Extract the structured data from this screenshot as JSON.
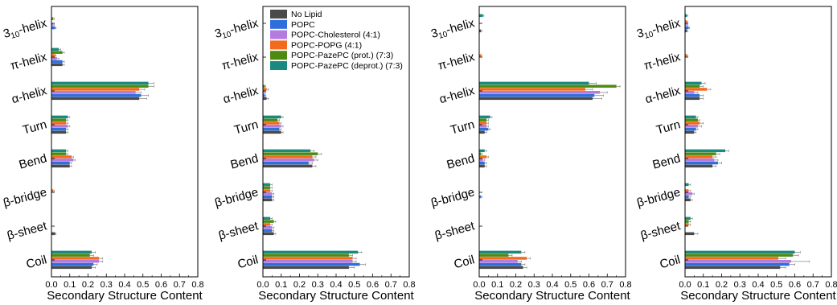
{
  "colors": {
    "No Lipid": "#4a4a4a",
    "POPC": "#2f6fdc",
    "POPC-Cholesterol (4:1)": "#b57ce0",
    "POPC-POPG (4:1)": "#f26b1d",
    "POPC-PazePC (prot.) (7:3)": "#4e8a12",
    "POPC-PazePC (deprot.) (7:3)": "#1a8a80"
  },
  "chart_data": [
    {
      "type": "bar",
      "orientation": "horizontal",
      "xlabel": "Secondary Structure Content",
      "xlim": [
        0,
        0.8
      ],
      "xticks": [
        "0.0",
        "0.1",
        "0.2",
        "0.3",
        "0.4",
        "0.5",
        "0.6",
        "0.7",
        "0.8"
      ],
      "categories": [
        "3₁₀-helix",
        "π-helix",
        "α-helix",
        "Turn",
        "Bend",
        "β-bridge",
        "β-sheet",
        "Coil"
      ],
      "series": [
        {
          "name": "No Lipid",
          "values": [
            0.0,
            0.06,
            0.48,
            0.08,
            0.1,
            0.0,
            0.02,
            0.22
          ],
          "errors": [
            0.0,
            0.01,
            0.04,
            0.01,
            0.01,
            0.0,
            0.005,
            0.02
          ]
        },
        {
          "name": "POPC",
          "values": [
            0.02,
            0.06,
            0.49,
            0.08,
            0.1,
            0.0,
            0.0,
            0.23
          ],
          "errors": [
            0.005,
            0.01,
            0.04,
            0.01,
            0.01,
            0.0,
            0.0,
            0.02
          ]
        },
        {
          "name": "POPC-Cholesterol (4:1)",
          "values": [
            0.01,
            0.03,
            0.46,
            0.09,
            0.12,
            0.0,
            0.0,
            0.26
          ],
          "errors": [
            0.005,
            0.01,
            0.03,
            0.01,
            0.01,
            0.0,
            0.0,
            0.02
          ]
        },
        {
          "name": "POPC-POPG (4:1)",
          "values": [
            0.0,
            0.02,
            0.48,
            0.08,
            0.11,
            0.01,
            0.0,
            0.26
          ],
          "errors": [
            0.0,
            0.005,
            0.03,
            0.01,
            0.01,
            0.005,
            0.0,
            0.02
          ]
        },
        {
          "name": "POPC-PazePC (prot.) (7:3)",
          "values": [
            0.01,
            0.06,
            0.53,
            0.08,
            0.08,
            0.0,
            0.0,
            0.21
          ],
          "errors": [
            0.005,
            0.01,
            0.03,
            0.01,
            0.01,
            0.0,
            0.0,
            0.02
          ]
        },
        {
          "name": "POPC-PazePC (deprot.) (7:3)",
          "values": [
            0.0,
            0.04,
            0.53,
            0.09,
            0.08,
            0.0,
            0.0,
            0.22
          ],
          "errors": [
            0.0,
            0.01,
            0.03,
            0.01,
            0.01,
            0.0,
            0.0,
            0.02
          ]
        }
      ]
    },
    {
      "type": "bar",
      "orientation": "horizontal",
      "xlabel": "Secondary Structure Content",
      "xlim": [
        0,
        0.8
      ],
      "xticks": [
        "0.0",
        "0.1",
        "0.2",
        "0.3",
        "0.4",
        "0.5",
        "0.6",
        "0.7",
        "0.8"
      ],
      "categories": [
        "3₁₀-helix",
        "π-helix",
        "α-helix",
        "Turn",
        "Bend",
        "β-bridge",
        "β-sheet",
        "Coil"
      ],
      "legend": {
        "placement": "top-right"
      },
      "series": [
        {
          "name": "No Lipid",
          "values": [
            0.0,
            0.0,
            0.02,
            0.1,
            0.27,
            0.05,
            0.06,
            0.47
          ],
          "errors": [
            0.0,
            0.0,
            0.01,
            0.01,
            0.02,
            0.01,
            0.01,
            0.03
          ]
        },
        {
          "name": "POPC",
          "values": [
            0.0,
            0.0,
            0.01,
            0.09,
            0.25,
            0.05,
            0.05,
            0.53
          ],
          "errors": [
            0.0,
            0.0,
            0.005,
            0.01,
            0.02,
            0.01,
            0.01,
            0.03
          ]
        },
        {
          "name": "POPC-Cholesterol (4:1)",
          "values": [
            0.0,
            0.0,
            0.01,
            0.1,
            0.28,
            0.05,
            0.05,
            0.49
          ],
          "errors": [
            0.0,
            0.0,
            0.005,
            0.01,
            0.02,
            0.01,
            0.01,
            0.02
          ]
        },
        {
          "name": "POPC-POPG (4:1)",
          "values": [
            0.0,
            0.0,
            0.02,
            0.09,
            0.27,
            0.04,
            0.04,
            0.49
          ],
          "errors": [
            0.0,
            0.0,
            0.01,
            0.01,
            0.02,
            0.01,
            0.01,
            0.02
          ]
        },
        {
          "name": "POPC-PazePC (prot.) (7:3)",
          "values": [
            0.0,
            0.0,
            0.01,
            0.08,
            0.3,
            0.04,
            0.06,
            0.47
          ],
          "errors": [
            0.0,
            0.0,
            0.005,
            0.01,
            0.02,
            0.01,
            0.01,
            0.02
          ]
        },
        {
          "name": "POPC-PazePC (deprot.) (7:3)",
          "values": [
            0.0,
            0.0,
            0.0,
            0.1,
            0.26,
            0.04,
            0.04,
            0.52
          ],
          "errors": [
            0.0,
            0.0,
            0.0,
            0.01,
            0.02,
            0.01,
            0.01,
            0.02
          ]
        }
      ]
    },
    {
      "type": "bar",
      "orientation": "horizontal",
      "xlabel": "Secondary Structure Content",
      "xlim": [
        0,
        0.8
      ],
      "xticks": [
        "0.0",
        "0.1",
        "0.2",
        "0.3",
        "0.4",
        "0.5",
        "0.6",
        "0.7",
        "0.8"
      ],
      "categories": [
        "3₁₀-helix",
        "π-helix",
        "α-helix",
        "Turn",
        "Bend",
        "β-bridge",
        "β-sheet",
        "Coil"
      ],
      "series": [
        {
          "name": "No Lipid",
          "values": [
            0.01,
            0.0,
            0.62,
            0.03,
            0.03,
            0.0,
            0.0,
            0.24
          ],
          "errors": [
            0.005,
            0.0,
            0.05,
            0.01,
            0.01,
            0.0,
            0.0,
            0.02
          ]
        },
        {
          "name": "POPC",
          "values": [
            0.0,
            0.0,
            0.63,
            0.05,
            0.03,
            0.01,
            0.0,
            0.23
          ],
          "errors": [
            0.0,
            0.0,
            0.05,
            0.01,
            0.01,
            0.005,
            0.0,
            0.02
          ]
        },
        {
          "name": "POPC-Cholesterol (4:1)",
          "values": [
            0.0,
            0.0,
            0.66,
            0.04,
            0.02,
            0.0,
            0.0,
            0.21
          ],
          "errors": [
            0.0,
            0.0,
            0.04,
            0.01,
            0.01,
            0.0,
            0.0,
            0.02
          ]
        },
        {
          "name": "POPC-POPG (4:1)",
          "values": [
            0.0,
            0.01,
            0.58,
            0.04,
            0.04,
            0.0,
            0.0,
            0.26
          ],
          "errors": [
            0.0,
            0.005,
            0.04,
            0.01,
            0.01,
            0.0,
            0.0,
            0.02
          ]
        },
        {
          "name": "POPC-PazePC (prot.) (7:3)",
          "values": [
            0.0,
            0.0,
            0.75,
            0.04,
            0.01,
            0.0,
            0.0,
            0.16
          ],
          "errors": [
            0.0,
            0.0,
            0.02,
            0.01,
            0.005,
            0.0,
            0.0,
            0.02
          ]
        },
        {
          "name": "POPC-PazePC (deprot.) (7:3)",
          "values": [
            0.02,
            0.0,
            0.6,
            0.06,
            0.03,
            0.0,
            0.0,
            0.23
          ],
          "errors": [
            0.005,
            0.0,
            0.04,
            0.01,
            0.01,
            0.0,
            0.0,
            0.02
          ]
        }
      ]
    },
    {
      "type": "bar",
      "orientation": "horizontal",
      "xlabel": "Secondary Structure Content",
      "xlim": [
        0,
        0.8
      ],
      "xticks": [
        "0.0",
        "0.1",
        "0.2",
        "0.3",
        "0.4",
        "0.5",
        "0.6",
        "0.7",
        "0.8"
      ],
      "categories": [
        "3₁₀-helix",
        "π-helix",
        "α-helix",
        "Turn",
        "Bend",
        "β-bridge",
        "β-sheet",
        "Coil"
      ],
      "series": [
        {
          "name": "No Lipid",
          "values": [
            0.01,
            0.0,
            0.08,
            0.05,
            0.15,
            0.03,
            0.05,
            0.52
          ],
          "errors": [
            0.005,
            0.0,
            0.02,
            0.01,
            0.02,
            0.01,
            0.02,
            0.03
          ]
        },
        {
          "name": "POPC",
          "values": [
            0.02,
            0.0,
            0.08,
            0.06,
            0.18,
            0.02,
            0.0,
            0.57
          ],
          "errors": [
            0.005,
            0.0,
            0.02,
            0.01,
            0.02,
            0.01,
            0.0,
            0.03
          ]
        },
        {
          "name": "POPC-Cholesterol (4:1)",
          "values": [
            0.01,
            0.0,
            0.05,
            0.07,
            0.16,
            0.04,
            0.0,
            0.58
          ],
          "errors": [
            0.005,
            0.0,
            0.02,
            0.02,
            0.02,
            0.01,
            0.0,
            0.1
          ]
        },
        {
          "name": "POPC-POPG (4:1)",
          "values": [
            0.01,
            0.01,
            0.12,
            0.08,
            0.15,
            0.02,
            0.02,
            0.51
          ],
          "errors": [
            0.005,
            0.005,
            0.02,
            0.02,
            0.02,
            0.01,
            0.01,
            0.04
          ]
        },
        {
          "name": "POPC-PazePC (prot.) (7:3)",
          "values": [
            0.0,
            0.0,
            0.08,
            0.07,
            0.17,
            0.0,
            0.02,
            0.59
          ],
          "errors": [
            0.0,
            0.0,
            0.02,
            0.01,
            0.02,
            0.0,
            0.01,
            0.03
          ]
        },
        {
          "name": "POPC-PazePC (deprot.) (7:3)",
          "values": [
            0.01,
            0.0,
            0.09,
            0.06,
            0.22,
            0.02,
            0.03,
            0.6
          ],
          "errors": [
            0.005,
            0.0,
            0.02,
            0.01,
            0.02,
            0.01,
            0.01,
            0.03
          ]
        }
      ]
    }
  ]
}
